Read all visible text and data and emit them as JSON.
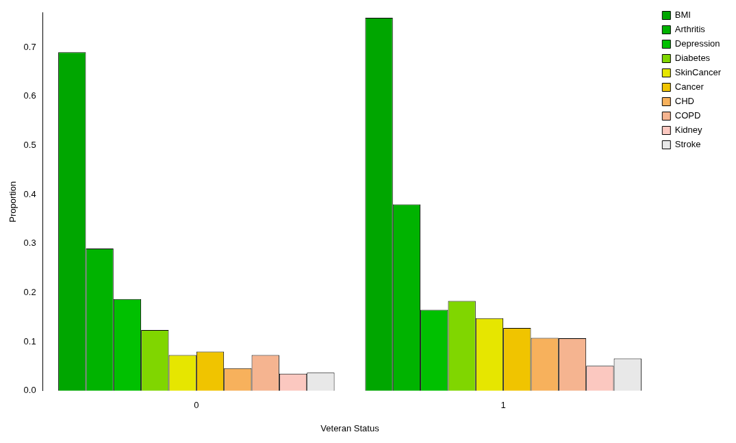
{
  "chart_data": {
    "type": "bar",
    "xlabel": "Veteran Status",
    "ylabel": "Proportion",
    "categories": [
      "0",
      "1"
    ],
    "series": [
      {
        "name": "BMI",
        "color": "#00a600",
        "values": [
          0.69,
          0.76
        ]
      },
      {
        "name": "Arthritis",
        "color": "#00b300",
        "values": [
          0.29,
          0.38
        ]
      },
      {
        "name": "Depression",
        "color": "#00c000",
        "values": [
          0.187,
          0.165
        ]
      },
      {
        "name": "Diabetes",
        "color": "#80d600",
        "values": [
          0.124,
          0.183
        ]
      },
      {
        "name": "SkinCancer",
        "color": "#e6e600",
        "values": [
          0.073,
          0.148
        ]
      },
      {
        "name": "Cancer",
        "color": "#f0c400",
        "values": [
          0.08,
          0.128
        ]
      },
      {
        "name": "CHD",
        "color": "#f7b15c",
        "values": [
          0.046,
          0.108
        ]
      },
      {
        "name": "COPD",
        "color": "#f5b490",
        "values": [
          0.073,
          0.107
        ]
      },
      {
        "name": "Kidney",
        "color": "#fbc8c0",
        "values": [
          0.035,
          0.051
        ]
      },
      {
        "name": "Stroke",
        "color": "#e8e8e8",
        "values": [
          0.037,
          0.066
        ]
      }
    ],
    "ylim": [
      0,
      0.77
    ],
    "yticks": [
      {
        "value": 0,
        "label": "0.0"
      },
      0.1,
      0.2,
      0.3,
      0.4,
      0.5,
      0.6,
      0.7
    ],
    "grid": false,
    "legend": "top right"
  }
}
